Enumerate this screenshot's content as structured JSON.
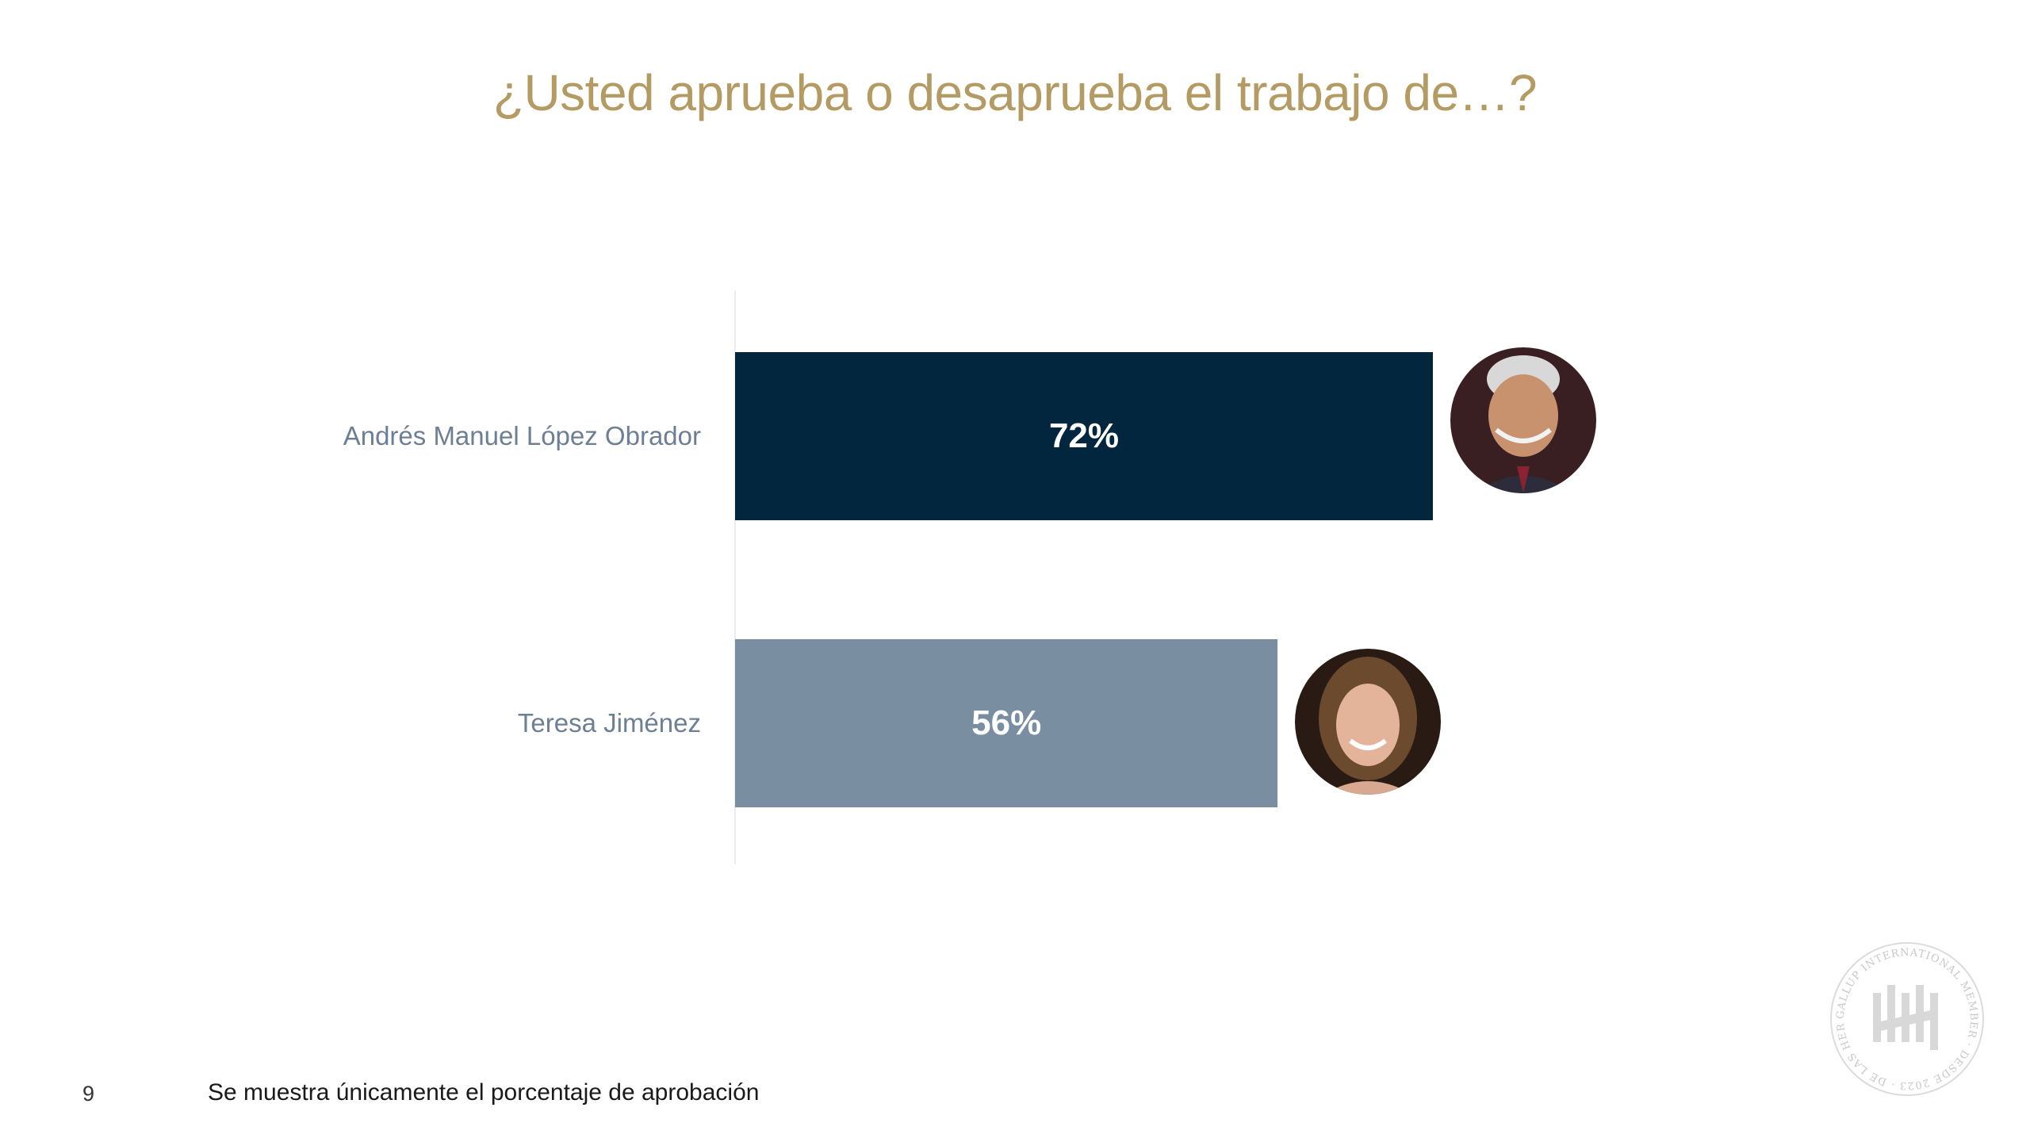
{
  "title": "¿Usted aprueba o desaprueba el trabajo de…?",
  "chart_data": {
    "type": "bar",
    "orientation": "horizontal",
    "categories": [
      "Andrés Manuel López Obrador",
      "Teresa Jiménez"
    ],
    "values": [
      72,
      56
    ],
    "value_labels": [
      "72%",
      "56%"
    ],
    "colors": [
      "#02263d",
      "#7a8ea2"
    ],
    "xlim": [
      0,
      100
    ],
    "grid": false,
    "legend": "none"
  },
  "footer": {
    "page_number": "9",
    "note": "Se muestra únicamente el porcentaje de aprobación"
  },
  "seal": {
    "ring_text": "GALLUP INTERNATIONAL MEMBER · DESDE 2023 · DE LAS HERAS ·"
  },
  "colors": {
    "title": "#b39b63",
    "category_label": "#6d7f94"
  }
}
